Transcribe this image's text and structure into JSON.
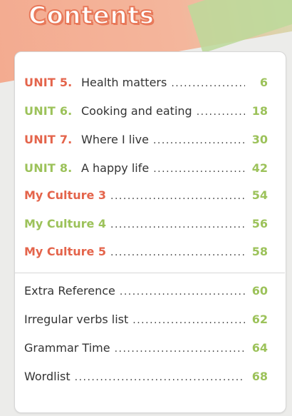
{
  "title": "Contents",
  "colors": {
    "red": "#e4644b",
    "green": "#9cc25a",
    "text": "#333333"
  },
  "units": [
    {
      "unit": "UNIT 5.",
      "title": "Health matters",
      "page": "6",
      "color": "red"
    },
    {
      "unit": "UNIT 6.",
      "title": "Cooking and eating",
      "page": "18",
      "color": "green"
    },
    {
      "unit": "UNIT 7.",
      "title": "Where I live",
      "page": "30",
      "color": "red"
    },
    {
      "unit": "UNIT 8.",
      "title": "A happy life",
      "page": "42",
      "color": "green"
    }
  ],
  "cultures": [
    {
      "title": "My Culture 3",
      "page": "54",
      "color": "red"
    },
    {
      "title": "My Culture 4",
      "page": "56",
      "color": "green"
    },
    {
      "title": "My Culture 5",
      "page": "58",
      "color": "red"
    }
  ],
  "references": [
    {
      "title": "Extra Reference",
      "page": "60"
    },
    {
      "title": "Irregular verbs list",
      "page": "62"
    },
    {
      "title": "Grammar Time",
      "page": "64"
    },
    {
      "title": "Wordlist",
      "page": "68"
    }
  ]
}
